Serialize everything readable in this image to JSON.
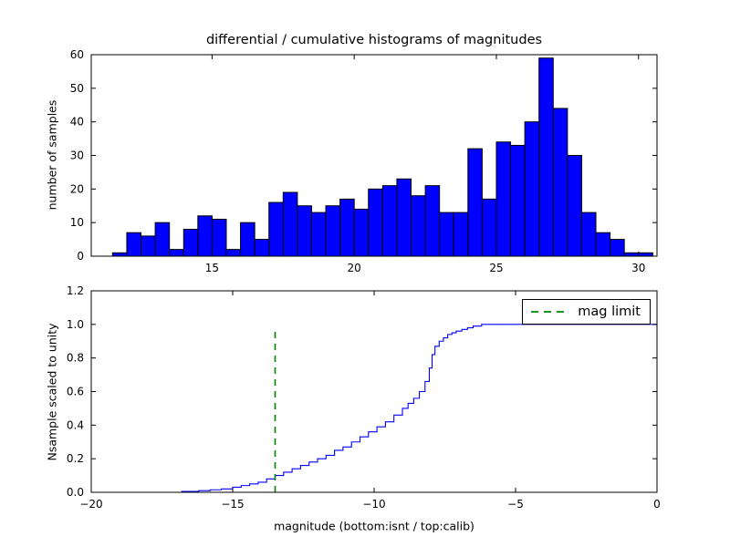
{
  "figure": {
    "background": "#ffffff",
    "title": "differential / cumulative histograms of magnitudes"
  },
  "chart_data": [
    {
      "type": "bar",
      "name": "differential-histogram",
      "title": "differential / cumulative histograms of magnitudes",
      "xlabel": "",
      "ylabel": "number of samples",
      "bin_start": 11.5,
      "bin_width": 0.5,
      "values": [
        1,
        7,
        6,
        10,
        2,
        8,
        12,
        11,
        2,
        10,
        5,
        16,
        19,
        15,
        13,
        15,
        17,
        14,
        20,
        21,
        23,
        18,
        21,
        13,
        13,
        32,
        17,
        34,
        33,
        40,
        59,
        44,
        30,
        13,
        7,
        5,
        1,
        1
      ],
      "xlim": [
        10.75,
        30.65
      ],
      "ylim": [
        0,
        60
      ],
      "xticks": [
        15,
        20,
        25,
        30
      ],
      "xtick_labels": [
        "15",
        "20",
        "25",
        "30"
      ],
      "yticks": [
        0,
        10,
        20,
        30,
        40,
        50,
        60
      ],
      "ytick_labels": [
        "0",
        "10",
        "20",
        "30",
        "40",
        "50",
        "60"
      ],
      "bar_color": "#0000ff",
      "bar_edge_color": "#000000",
      "grid": false
    },
    {
      "type": "line",
      "name": "cumulative-histogram",
      "title": "",
      "xlabel": "magnitude (bottom:isnt / top:calib)",
      "ylabel": "Nsample scaled to unity",
      "step": "post",
      "points": [
        [
          -18,
          0
        ],
        [
          -16.8,
          0.005
        ],
        [
          -16.2,
          0.01
        ],
        [
          -15.8,
          0.015
        ],
        [
          -15.4,
          0.02
        ],
        [
          -15,
          0.03
        ],
        [
          -14.7,
          0.04
        ],
        [
          -14.4,
          0.05
        ],
        [
          -14.1,
          0.06
        ],
        [
          -13.8,
          0.08
        ],
        [
          -13.5,
          0.1
        ],
        [
          -13.2,
          0.12
        ],
        [
          -12.9,
          0.14
        ],
        [
          -12.6,
          0.16
        ],
        [
          -12.3,
          0.18
        ],
        [
          -12,
          0.2
        ],
        [
          -11.7,
          0.22
        ],
        [
          -11.4,
          0.25
        ],
        [
          -11.1,
          0.27
        ],
        [
          -10.8,
          0.3
        ],
        [
          -10.5,
          0.33
        ],
        [
          -10.2,
          0.36
        ],
        [
          -9.9,
          0.39
        ],
        [
          -9.6,
          0.42
        ],
        [
          -9.3,
          0.46
        ],
        [
          -9,
          0.5
        ],
        [
          -8.8,
          0.53
        ],
        [
          -8.6,
          0.56
        ],
        [
          -8.4,
          0.6
        ],
        [
          -8.2,
          0.66
        ],
        [
          -8.05,
          0.74
        ],
        [
          -7.95,
          0.82
        ],
        [
          -7.85,
          0.87
        ],
        [
          -7.7,
          0.9
        ],
        [
          -7.55,
          0.92
        ],
        [
          -7.4,
          0.94
        ],
        [
          -7.25,
          0.95
        ],
        [
          -7.1,
          0.96
        ],
        [
          -6.9,
          0.97
        ],
        [
          -6.7,
          0.98
        ],
        [
          -6.5,
          0.99
        ],
        [
          -6.2,
          1
        ],
        [
          0,
          1
        ]
      ],
      "xlim": [
        -20,
        0
      ],
      "ylim": [
        0,
        1.2
      ],
      "xticks": [
        -20,
        -15,
        -10,
        -5,
        0
      ],
      "xtick_labels": [
        "−20",
        "−15",
        "−10",
        "−5",
        "0"
      ],
      "yticks": [
        0,
        0.2,
        0.4,
        0.6,
        0.8,
        1.0,
        1.2
      ],
      "ytick_labels": [
        "0.0",
        "0.2",
        "0.4",
        "0.6",
        "0.8",
        "1.0",
        "1.2"
      ],
      "line_color": "#0000ff",
      "vline": {
        "x": -13.5,
        "y_bottom": 0,
        "y_top": 0.97,
        "color": "#008000",
        "style": "dashed",
        "label": "mag limit"
      },
      "legend": {
        "label": "mag limit",
        "position": "upper right",
        "sample_color": "#008000",
        "sample_style": "dashed"
      },
      "grid": false
    }
  ]
}
